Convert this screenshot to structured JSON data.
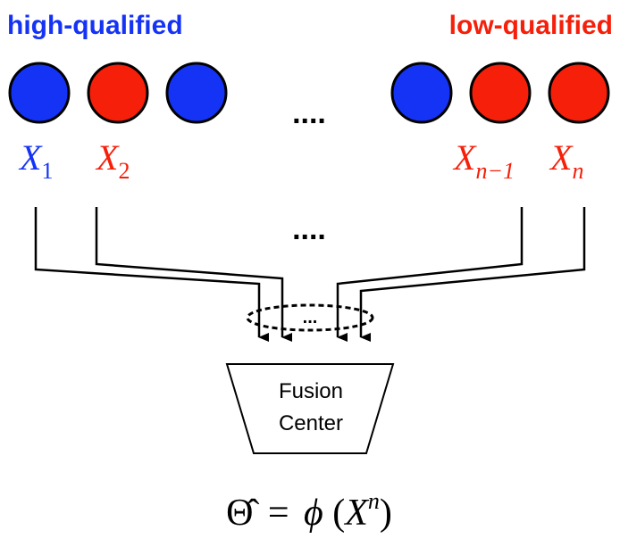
{
  "legend": {
    "high_label": "high-qualified",
    "low_label": "low-qualified",
    "high_color": "#1533f5",
    "low_color": "#f51f0a"
  },
  "nodes": [
    {
      "base": "X",
      "sub": "1",
      "sub_italic": false,
      "quality": "high"
    },
    {
      "base": "X",
      "sub": "2",
      "sub_italic": false,
      "quality": "low"
    },
    {
      "base": "",
      "sub": "",
      "sub_italic": false,
      "quality": "high"
    },
    {
      "base": "",
      "sub": "",
      "sub_italic": false,
      "quality": "high"
    },
    {
      "base": "X",
      "sub": "n−1",
      "sub_italic": true,
      "quality": "low"
    },
    {
      "base": "X",
      "sub": "n",
      "sub_italic": true,
      "quality": "low"
    }
  ],
  "ellipsis_top": "....",
  "ellipsis_mid": "....",
  "ellipsis_bundle": "...",
  "fusion_center": {
    "line1": "Fusion",
    "line2": "Center"
  },
  "formula": {
    "lhs": "Θ̂",
    "eq": "=",
    "phi": "ϕ",
    "open": "(",
    "var": "X",
    "sup": "n",
    "close": ")"
  }
}
